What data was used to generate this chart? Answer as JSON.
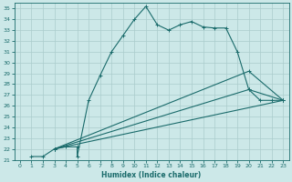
{
  "xlabel": "Humidex (Indice chaleur)",
  "bg_color": "#cce8e8",
  "grid_color": "#aacccc",
  "line_color": "#1a6b6b",
  "xlim": [
    -0.5,
    23.5
  ],
  "ylim": [
    21,
    35.5
  ],
  "xticks": [
    0,
    1,
    2,
    3,
    4,
    5,
    6,
    7,
    8,
    9,
    10,
    11,
    12,
    13,
    14,
    15,
    16,
    17,
    18,
    19,
    20,
    21,
    22,
    23
  ],
  "yticks": [
    21,
    22,
    23,
    24,
    25,
    26,
    27,
    28,
    29,
    30,
    31,
    32,
    33,
    34,
    35
  ],
  "line_main": {
    "x": [
      1,
      2,
      3,
      4,
      5,
      5,
      6,
      7,
      8,
      9,
      10,
      11,
      12,
      13,
      14,
      15,
      16,
      17,
      18,
      19,
      20,
      21,
      22,
      23
    ],
    "y": [
      21.3,
      21.3,
      22.0,
      22.2,
      22.2,
      21.3,
      26.5,
      28.8,
      31.0,
      32.5,
      34.0,
      35.2,
      33.5,
      33.0,
      33.5,
      33.8,
      33.3,
      33.2,
      33.2,
      31.0,
      27.5,
      26.5,
      26.5,
      26.5
    ]
  },
  "line_low": {
    "x": [
      3,
      23
    ],
    "y": [
      22.0,
      26.5
    ]
  },
  "line_mid1": {
    "x": [
      3,
      20,
      23
    ],
    "y": [
      22.0,
      29.2,
      26.5
    ]
  },
  "line_mid2": {
    "x": [
      3,
      20,
      23
    ],
    "y": [
      22.0,
      27.5,
      26.5
    ]
  }
}
